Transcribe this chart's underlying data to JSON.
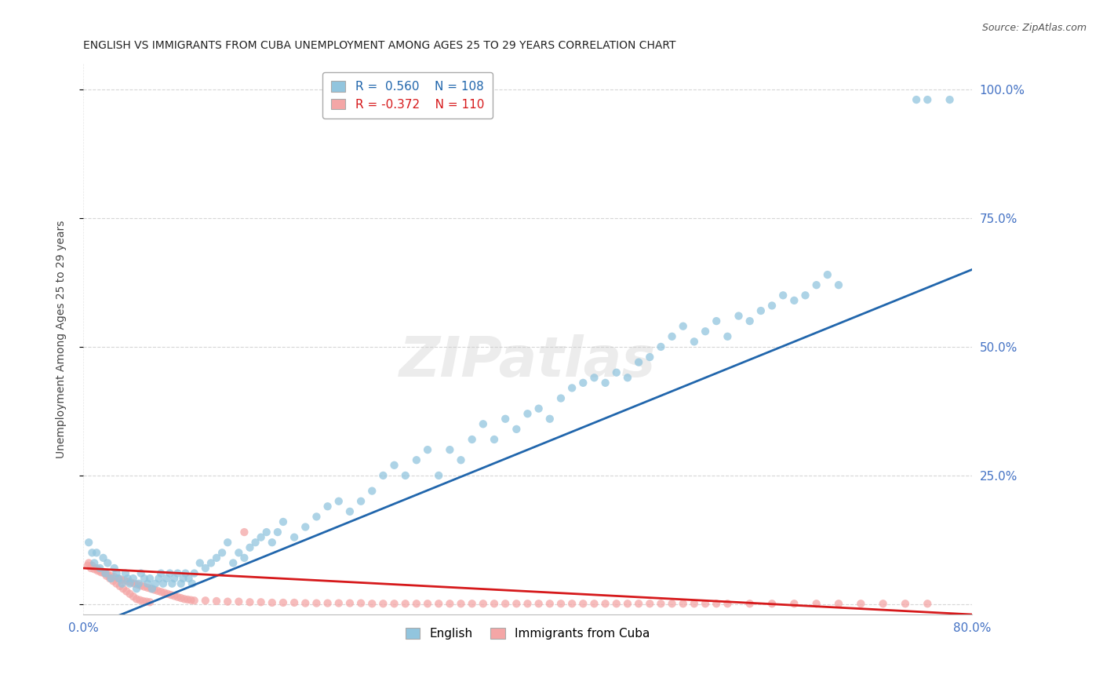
{
  "title": "ENGLISH VS IMMIGRANTS FROM CUBA UNEMPLOYMENT AMONG AGES 25 TO 29 YEARS CORRELATION CHART",
  "source": "Source: ZipAtlas.com",
  "ylabel": "Unemployment Among Ages 25 to 29 years",
  "xlim": [
    0.0,
    0.8
  ],
  "ylim": [
    -0.02,
    1.05
  ],
  "blue_R": 0.56,
  "blue_N": 108,
  "pink_R": -0.372,
  "pink_N": 110,
  "blue_color": "#92c5de",
  "pink_color": "#f4a6a6",
  "blue_line_color": "#2166ac",
  "pink_line_color": "#d6191b",
  "legend_label_blue": "English",
  "legend_label_pink": "Immigrants from Cuba",
  "watermark": "ZIPatlas",
  "background_color": "#ffffff",
  "grid_color": "#cccccc",
  "tick_label_color": "#4472c4",
  "blue_scatter_x": [
    0.005,
    0.008,
    0.01,
    0.012,
    0.015,
    0.018,
    0.02,
    0.022,
    0.025,
    0.028,
    0.03,
    0.032,
    0.035,
    0.038,
    0.04,
    0.042,
    0.045,
    0.048,
    0.05,
    0.052,
    0.055,
    0.058,
    0.06,
    0.062,
    0.065,
    0.068,
    0.07,
    0.072,
    0.075,
    0.078,
    0.08,
    0.082,
    0.085,
    0.088,
    0.09,
    0.092,
    0.095,
    0.098,
    0.1,
    0.105,
    0.11,
    0.115,
    0.12,
    0.125,
    0.13,
    0.135,
    0.14,
    0.145,
    0.15,
    0.155,
    0.16,
    0.165,
    0.17,
    0.175,
    0.18,
    0.19,
    0.2,
    0.21,
    0.22,
    0.23,
    0.24,
    0.25,
    0.26,
    0.27,
    0.28,
    0.29,
    0.3,
    0.31,
    0.32,
    0.33,
    0.34,
    0.35,
    0.36,
    0.37,
    0.38,
    0.39,
    0.4,
    0.41,
    0.42,
    0.43,
    0.44,
    0.45,
    0.46,
    0.47,
    0.48,
    0.49,
    0.5,
    0.51,
    0.52,
    0.53,
    0.54,
    0.55,
    0.56,
    0.57,
    0.58,
    0.59,
    0.6,
    0.61,
    0.62,
    0.63,
    0.64,
    0.65,
    0.66,
    0.67,
    0.68,
    0.75,
    0.76,
    0.78
  ],
  "blue_scatter_y": [
    0.12,
    0.1,
    0.08,
    0.1,
    0.07,
    0.09,
    0.06,
    0.08,
    0.05,
    0.07,
    0.06,
    0.05,
    0.04,
    0.06,
    0.05,
    0.04,
    0.05,
    0.03,
    0.04,
    0.06,
    0.05,
    0.04,
    0.05,
    0.03,
    0.04,
    0.05,
    0.06,
    0.04,
    0.05,
    0.06,
    0.04,
    0.05,
    0.06,
    0.04,
    0.05,
    0.06,
    0.05,
    0.04,
    0.06,
    0.08,
    0.07,
    0.08,
    0.09,
    0.1,
    0.12,
    0.08,
    0.1,
    0.09,
    0.11,
    0.12,
    0.13,
    0.14,
    0.12,
    0.14,
    0.16,
    0.13,
    0.15,
    0.17,
    0.19,
    0.2,
    0.18,
    0.2,
    0.22,
    0.25,
    0.27,
    0.25,
    0.28,
    0.3,
    0.25,
    0.3,
    0.28,
    0.32,
    0.35,
    0.32,
    0.36,
    0.34,
    0.37,
    0.38,
    0.36,
    0.4,
    0.42,
    0.43,
    0.44,
    0.43,
    0.45,
    0.44,
    0.47,
    0.48,
    0.5,
    0.52,
    0.54,
    0.51,
    0.53,
    0.55,
    0.52,
    0.56,
    0.55,
    0.57,
    0.58,
    0.6,
    0.59,
    0.6,
    0.62,
    0.64,
    0.62,
    0.98,
    0.98,
    0.98
  ],
  "pink_scatter_x": [
    0.004,
    0.007,
    0.01,
    0.013,
    0.016,
    0.019,
    0.022,
    0.025,
    0.028,
    0.031,
    0.034,
    0.037,
    0.04,
    0.043,
    0.046,
    0.049,
    0.052,
    0.055,
    0.058,
    0.061,
    0.064,
    0.067,
    0.07,
    0.073,
    0.076,
    0.079,
    0.082,
    0.085,
    0.088,
    0.091,
    0.094,
    0.097,
    0.1,
    0.11,
    0.12,
    0.13,
    0.14,
    0.15,
    0.16,
    0.17,
    0.18,
    0.19,
    0.2,
    0.21,
    0.22,
    0.23,
    0.24,
    0.25,
    0.26,
    0.27,
    0.28,
    0.29,
    0.3,
    0.31,
    0.32,
    0.33,
    0.34,
    0.35,
    0.36,
    0.37,
    0.38,
    0.39,
    0.4,
    0.41,
    0.42,
    0.43,
    0.44,
    0.45,
    0.46,
    0.47,
    0.48,
    0.49,
    0.5,
    0.51,
    0.52,
    0.53,
    0.54,
    0.55,
    0.56,
    0.57,
    0.58,
    0.6,
    0.62,
    0.64,
    0.66,
    0.68,
    0.7,
    0.72,
    0.74,
    0.76,
    0.005,
    0.008,
    0.012,
    0.015,
    0.018,
    0.021,
    0.024,
    0.027,
    0.03,
    0.033,
    0.036,
    0.039,
    0.042,
    0.045,
    0.048,
    0.051,
    0.054,
    0.057,
    0.06,
    0.145
  ],
  "pink_scatter_y": [
    0.075,
    0.07,
    0.068,
    0.065,
    0.062,
    0.06,
    0.058,
    0.055,
    0.053,
    0.05,
    0.048,
    0.046,
    0.044,
    0.042,
    0.04,
    0.038,
    0.036,
    0.034,
    0.032,
    0.03,
    0.028,
    0.026,
    0.024,
    0.022,
    0.02,
    0.018,
    0.016,
    0.014,
    0.012,
    0.01,
    0.009,
    0.008,
    0.007,
    0.007,
    0.006,
    0.005,
    0.005,
    0.004,
    0.004,
    0.003,
    0.003,
    0.003,
    0.002,
    0.002,
    0.002,
    0.002,
    0.002,
    0.002,
    0.001,
    0.001,
    0.001,
    0.001,
    0.001,
    0.001,
    0.001,
    0.001,
    0.001,
    0.001,
    0.001,
    0.001,
    0.001,
    0.001,
    0.001,
    0.001,
    0.001,
    0.001,
    0.001,
    0.001,
    0.001,
    0.001,
    0.001,
    0.001,
    0.001,
    0.001,
    0.001,
    0.001,
    0.001,
    0.001,
    0.001,
    0.001,
    0.001,
    0.001,
    0.001,
    0.001,
    0.001,
    0.001,
    0.001,
    0.001,
    0.001,
    0.001,
    0.08,
    0.075,
    0.07,
    0.065,
    0.062,
    0.055,
    0.05,
    0.045,
    0.04,
    0.035,
    0.03,
    0.025,
    0.02,
    0.015,
    0.01,
    0.008,
    0.006,
    0.005,
    0.004,
    0.14
  ]
}
